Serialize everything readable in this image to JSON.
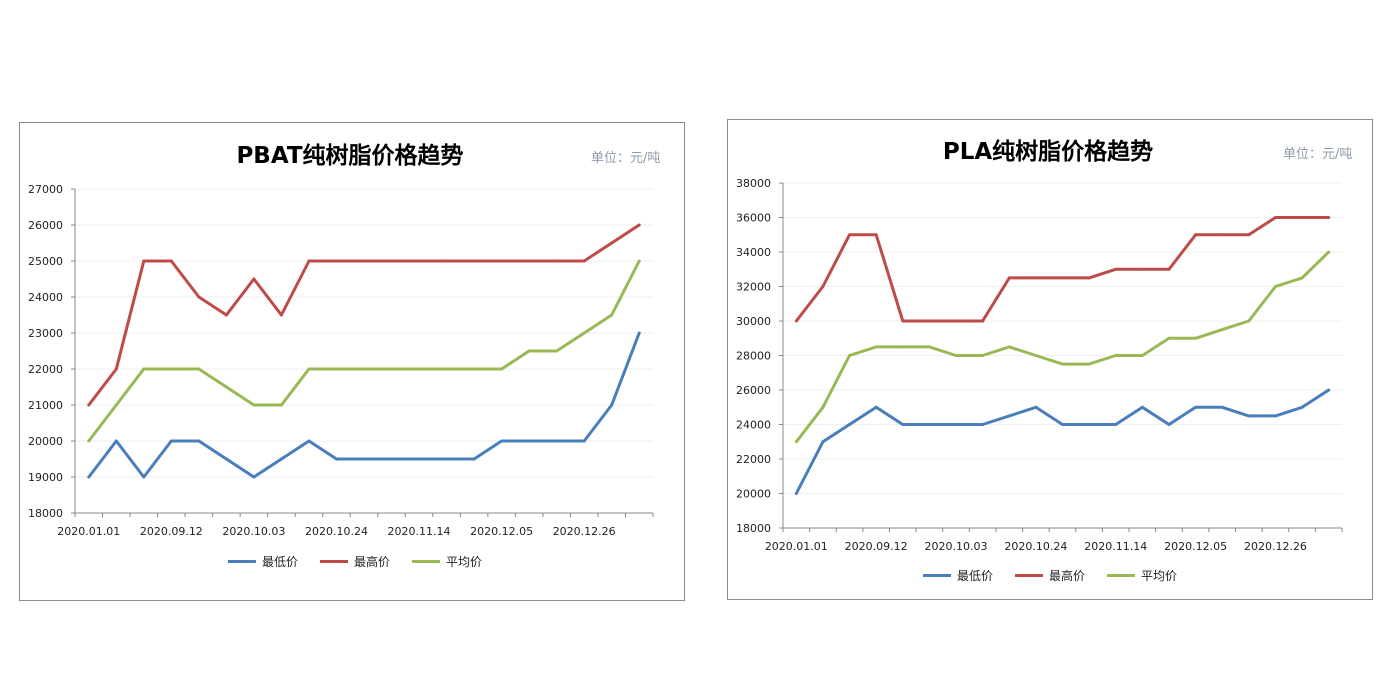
{
  "chart_data": [
    {
      "type": "line",
      "title": "PBAT纯树脂价格趋势",
      "unit_label": "单位：元/吨",
      "x_tick_labels": [
        "2020.01.01",
        "2020.09.12",
        "2020.10.03",
        "2020.10.24",
        "2020.11.14",
        "2020.12.05",
        "2020.12.26"
      ],
      "ylim": [
        18000,
        27000
      ],
      "y_ticks": [
        18000,
        19000,
        20000,
        21000,
        22000,
        23000,
        24000,
        25000,
        26000,
        27000
      ],
      "grid": true,
      "legend": "bottom",
      "series": [
        {
          "name": "最低价",
          "color": "#4a7ebb",
          "values": [
            19000,
            20000,
            19000,
            20000,
            20000,
            19500,
            19000,
            19500,
            20000,
            19500,
            19500,
            19500,
            19500,
            19500,
            19500,
            20000,
            20000,
            20000,
            20000,
            21000,
            23000
          ]
        },
        {
          "name": "最高价",
          "color": "#be4b48",
          "values": [
            21000,
            22000,
            25000,
            25000,
            24000,
            23500,
            24500,
            23500,
            25000,
            25000,
            25000,
            25000,
            25000,
            25000,
            25000,
            25000,
            25000,
            25000,
            25000,
            25500,
            26000
          ]
        },
        {
          "name": "平均价",
          "color": "#98b954",
          "values": [
            20000,
            21000,
            22000,
            22000,
            22000,
            21500,
            21000,
            21000,
            22000,
            22000,
            22000,
            22000,
            22000,
            22000,
            22000,
            22000,
            22500,
            22500,
            23000,
            23500,
            25000
          ]
        }
      ]
    },
    {
      "type": "line",
      "title": "PLA纯树脂价格趋势",
      "unit_label": "单位：元/吨",
      "x_tick_labels": [
        "2020.01.01",
        "2020.09.12",
        "2020.10.03",
        "2020.10.24",
        "2020.11.14",
        "2020.12.05",
        "2020.12.26"
      ],
      "ylim": [
        18000,
        38000
      ],
      "y_ticks": [
        18000,
        20000,
        22000,
        24000,
        26000,
        28000,
        30000,
        32000,
        34000,
        36000,
        38000
      ],
      "grid": true,
      "legend": "bottom",
      "series": [
        {
          "name": "最低价",
          "color": "#4a7ebb",
          "values": [
            20000,
            23000,
            24000,
            25000,
            24000,
            24000,
            24000,
            24000,
            24500,
            25000,
            24000,
            24000,
            24000,
            25000,
            24000,
            25000,
            25000,
            24500,
            24500,
            25000,
            26000
          ]
        },
        {
          "name": "最高价",
          "color": "#be4b48",
          "values": [
            30000,
            32000,
            35000,
            35000,
            30000,
            30000,
            30000,
            30000,
            32500,
            32500,
            32500,
            32500,
            33000,
            33000,
            33000,
            35000,
            35000,
            35000,
            36000,
            36000,
            36000
          ]
        },
        {
          "name": "平均价",
          "color": "#98b954",
          "values": [
            23000,
            25000,
            28000,
            28500,
            28500,
            28500,
            28000,
            28000,
            28500,
            28000,
            27500,
            27500,
            28000,
            28000,
            29000,
            29000,
            29500,
            30000,
            32000,
            32500,
            34000
          ]
        }
      ]
    }
  ]
}
